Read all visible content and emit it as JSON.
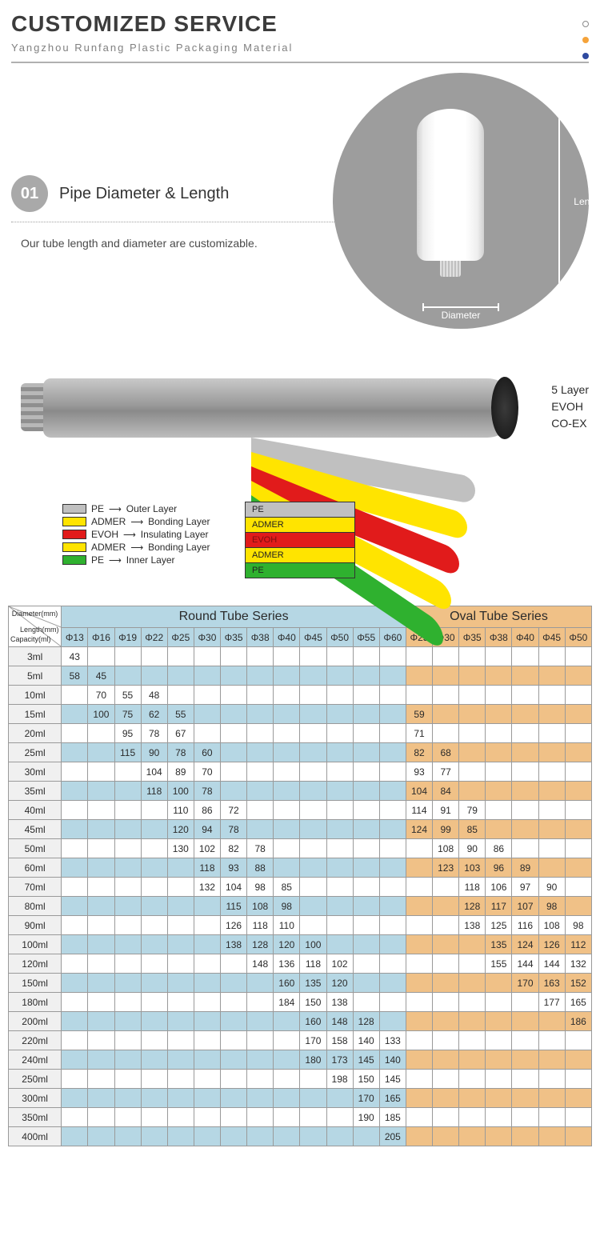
{
  "header": {
    "title": "CUSTOMIZED SERVICE",
    "subtitle": "Yangzhou Runfang Plastic Packaging Material",
    "dot_colors": {
      "hollow_border": "#8a8a8a",
      "orange": "#f5a33a",
      "blue": "#2f4aa0"
    }
  },
  "section01": {
    "badge": "01",
    "title": "Pipe Diameter & Length",
    "desc": "Our tube length and diameter are customizable.",
    "length_label": "Length",
    "diameter_label": "Diameter",
    "circle_bg": "#9d9d9d"
  },
  "layers_diagram": {
    "side_text": [
      "5 Layer",
      "EVOH",
      "CO-EX"
    ],
    "legend": [
      {
        "swatch": "#c0c0c0",
        "name": "PE",
        "role": "Outer Layer"
      },
      {
        "swatch": "#ffe400",
        "name": "ADMER",
        "role": "Bonding Layer"
      },
      {
        "swatch": "#e11b1b",
        "name": "EVOH",
        "role": "Insulating Layer"
      },
      {
        "swatch": "#ffe400",
        "name": "ADMER",
        "role": "Bonding Layer"
      },
      {
        "swatch": "#2fb12f",
        "name": "PE",
        "role": "Inner Layer"
      }
    ],
    "stack_labels": [
      {
        "text": "PE",
        "bg": "#c0c0c0",
        "fg": "#222"
      },
      {
        "text": "ADMER",
        "bg": "#ffe400",
        "fg": "#222"
      },
      {
        "text": "EVOH",
        "bg": "#e11b1b",
        "fg": "#7a1010"
      },
      {
        "text": "ADMER",
        "bg": "#ffe400",
        "fg": "#222"
      },
      {
        "text": "PE",
        "bg": "#2fb12f",
        "fg": "#222"
      }
    ],
    "peel_colors": [
      "#c0c0c0",
      "#ffe400",
      "#e11b1b",
      "#ffe400",
      "#2fb12f"
    ]
  },
  "table": {
    "diag_header": {
      "diameter": "Diameter(mm)",
      "length": "Length(mm)",
      "capacity": "Capacity(ml)"
    },
    "round_title": "Round Tube Series",
    "oval_title": "Oval Tube Series",
    "round_cols": [
      "Φ13",
      "Φ16",
      "Φ19",
      "Φ22",
      "Φ25",
      "Φ30",
      "Φ35",
      "Φ38",
      "Φ40",
      "Φ45",
      "Φ50",
      "Φ55",
      "Φ60"
    ],
    "oval_cols": [
      "Φ25",
      "Φ30",
      "Φ35",
      "Φ38",
      "Φ40",
      "Φ45",
      "Φ50"
    ],
    "colors": {
      "round_header": "#b6d7e4",
      "oval_header": "#f0c187",
      "capacity_col": "#f0f0f0",
      "border": "#9a9a9a"
    },
    "rows": [
      {
        "cap": "3ml",
        "r": [
          "43",
          "",
          "",
          "",
          "",
          "",
          "",
          "",
          "",
          "",
          "",
          "",
          ""
        ],
        "o": [
          "",
          "",
          "",
          "",
          "",
          "",
          ""
        ]
      },
      {
        "cap": "5ml",
        "r": [
          "58",
          "45",
          "",
          "",
          "",
          "",
          "",
          "",
          "",
          "",
          "",
          "",
          ""
        ],
        "o": [
          "",
          "",
          "",
          "",
          "",
          "",
          ""
        ]
      },
      {
        "cap": "10ml",
        "r": [
          "",
          "70",
          "55",
          "48",
          "",
          "",
          "",
          "",
          "",
          "",
          "",
          "",
          ""
        ],
        "o": [
          "",
          "",
          "",
          "",
          "",
          "",
          ""
        ]
      },
      {
        "cap": "15ml",
        "r": [
          "",
          "100",
          "75",
          "62",
          "55",
          "",
          "",
          "",
          "",
          "",
          "",
          "",
          ""
        ],
        "o": [
          "59",
          "",
          "",
          "",
          "",
          "",
          ""
        ]
      },
      {
        "cap": "20ml",
        "r": [
          "",
          "",
          "95",
          "78",
          "67",
          "",
          "",
          "",
          "",
          "",
          "",
          "",
          ""
        ],
        "o": [
          "71",
          "",
          "",
          "",
          "",
          "",
          ""
        ]
      },
      {
        "cap": "25ml",
        "r": [
          "",
          "",
          "115",
          "90",
          "78",
          "60",
          "",
          "",
          "",
          "",
          "",
          "",
          ""
        ],
        "o": [
          "82",
          "68",
          "",
          "",
          "",
          "",
          ""
        ]
      },
      {
        "cap": "30ml",
        "r": [
          "",
          "",
          "",
          "104",
          "89",
          "70",
          "",
          "",
          "",
          "",
          "",
          "",
          ""
        ],
        "o": [
          "93",
          "77",
          "",
          "",
          "",
          "",
          ""
        ]
      },
      {
        "cap": "35ml",
        "r": [
          "",
          "",
          "",
          "118",
          "100",
          "78",
          "",
          "",
          "",
          "",
          "",
          "",
          ""
        ],
        "o": [
          "104",
          "84",
          "",
          "",
          "",
          "",
          ""
        ]
      },
      {
        "cap": "40ml",
        "r": [
          "",
          "",
          "",
          "",
          "110",
          "86",
          "72",
          "",
          "",
          "",
          "",
          "",
          ""
        ],
        "o": [
          "114",
          "91",
          "79",
          "",
          "",
          "",
          ""
        ]
      },
      {
        "cap": "45ml",
        "r": [
          "",
          "",
          "",
          "",
          "120",
          "94",
          "78",
          "",
          "",
          "",
          "",
          "",
          ""
        ],
        "o": [
          "124",
          "99",
          "85",
          "",
          "",
          "",
          ""
        ]
      },
      {
        "cap": "50ml",
        "r": [
          "",
          "",
          "",
          "",
          "130",
          "102",
          "82",
          "78",
          "",
          "",
          "",
          "",
          ""
        ],
        "o": [
          "",
          "108",
          "90",
          "86",
          "",
          "",
          ""
        ]
      },
      {
        "cap": "60ml",
        "r": [
          "",
          "",
          "",
          "",
          "",
          "118",
          "93",
          "88",
          "",
          "",
          "",
          "",
          ""
        ],
        "o": [
          "",
          "123",
          "103",
          "96",
          "89",
          "",
          ""
        ]
      },
      {
        "cap": "70ml",
        "r": [
          "",
          "",
          "",
          "",
          "",
          "132",
          "104",
          "98",
          "85",
          "",
          "",
          "",
          ""
        ],
        "o": [
          "",
          "",
          "118",
          "106",
          "97",
          "90",
          ""
        ]
      },
      {
        "cap": "80ml",
        "r": [
          "",
          "",
          "",
          "",
          "",
          "",
          "115",
          "108",
          "98",
          "",
          "",
          "",
          ""
        ],
        "o": [
          "",
          "",
          "128",
          "117",
          "107",
          "98",
          ""
        ]
      },
      {
        "cap": "90ml",
        "r": [
          "",
          "",
          "",
          "",
          "",
          "",
          "126",
          "118",
          "110",
          "",
          "",
          "",
          ""
        ],
        "o": [
          "",
          "",
          "138",
          "125",
          "116",
          "108",
          "98"
        ]
      },
      {
        "cap": "100ml",
        "r": [
          "",
          "",
          "",
          "",
          "",
          "",
          "138",
          "128",
          "120",
          "100",
          "",
          "",
          ""
        ],
        "o": [
          "",
          "",
          "",
          "135",
          "124",
          "126",
          "112"
        ]
      },
      {
        "cap": "120ml",
        "r": [
          "",
          "",
          "",
          "",
          "",
          "",
          "",
          "148",
          "136",
          "118",
          "102",
          "",
          ""
        ],
        "o": [
          "",
          "",
          "",
          "155",
          "144",
          "144",
          "132"
        ]
      },
      {
        "cap": "150ml",
        "r": [
          "",
          "",
          "",
          "",
          "",
          "",
          "",
          "",
          "160",
          "135",
          "120",
          "",
          ""
        ],
        "o": [
          "",
          "",
          "",
          "",
          "170",
          "163",
          "152"
        ]
      },
      {
        "cap": "180ml",
        "r": [
          "",
          "",
          "",
          "",
          "",
          "",
          "",
          "",
          "184",
          "150",
          "138",
          "",
          ""
        ],
        "o": [
          "",
          "",
          "",
          "",
          "",
          "177",
          "165"
        ]
      },
      {
        "cap": "200ml",
        "r": [
          "",
          "",
          "",
          "",
          "",
          "",
          "",
          "",
          "",
          "160",
          "148",
          "128",
          ""
        ],
        "o": [
          "",
          "",
          "",
          "",
          "",
          "",
          "186"
        ]
      },
      {
        "cap": "220ml",
        "r": [
          "",
          "",
          "",
          "",
          "",
          "",
          "",
          "",
          "",
          "170",
          "158",
          "140",
          "133"
        ],
        "o": [
          "",
          "",
          "",
          "",
          "",
          "",
          ""
        ]
      },
      {
        "cap": "240ml",
        "r": [
          "",
          "",
          "",
          "",
          "",
          "",
          "",
          "",
          "",
          "180",
          "173",
          "145",
          "140"
        ],
        "o": [
          "",
          "",
          "",
          "",
          "",
          "",
          ""
        ]
      },
      {
        "cap": "250ml",
        "r": [
          "",
          "",
          "",
          "",
          "",
          "",
          "",
          "",
          "",
          "",
          "198",
          "150",
          "145"
        ],
        "o": [
          "",
          "",
          "",
          "",
          "",
          "",
          ""
        ]
      },
      {
        "cap": "300ml",
        "r": [
          "",
          "",
          "",
          "",
          "",
          "",
          "",
          "",
          "",
          "",
          "",
          "170",
          "165"
        ],
        "o": [
          "",
          "",
          "",
          "",
          "",
          "",
          ""
        ]
      },
      {
        "cap": "350ml",
        "r": [
          "",
          "",
          "",
          "",
          "",
          "",
          "",
          "",
          "",
          "",
          "",
          "190",
          "185"
        ],
        "o": [
          "",
          "",
          "",
          "",
          "",
          "",
          ""
        ]
      },
      {
        "cap": "400ml",
        "r": [
          "",
          "",
          "",
          "",
          "",
          "",
          "",
          "",
          "",
          "",
          "",
          "",
          "205"
        ],
        "o": [
          "",
          "",
          "",
          "",
          "",
          "",
          ""
        ]
      }
    ]
  }
}
